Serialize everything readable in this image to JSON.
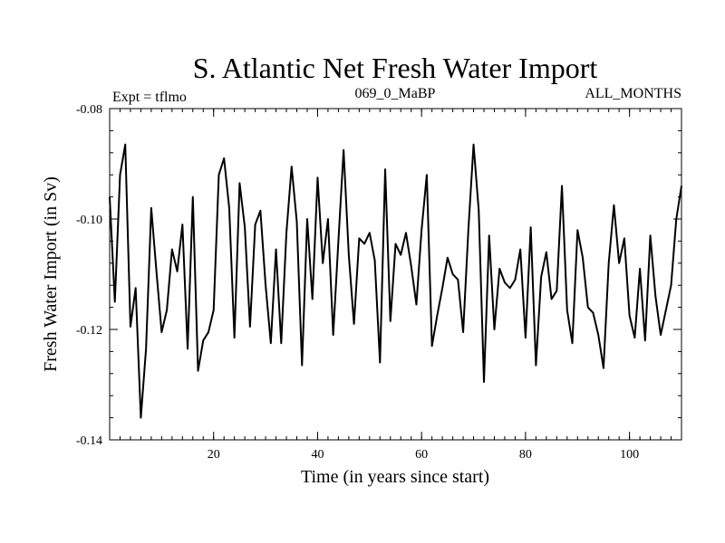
{
  "chart_data": {
    "type": "line",
    "title": "S. Atlantic Net Fresh Water Import",
    "subtitle_left": "Expt = tflmo",
    "subtitle_center": "069_0_MaBP",
    "subtitle_right": "ALL_MONTHS",
    "xlabel": "Time (in years since start)",
    "ylabel": "Fresh Water Import (in Sv)",
    "xlim": [
      0,
      110
    ],
    "ylim": [
      -0.14,
      -0.08
    ],
    "x_ticks": [
      20,
      40,
      60,
      80,
      100
    ],
    "x_tick_labels": [
      "20",
      "40",
      "60",
      "80",
      "100"
    ],
    "y_ticks": [
      -0.14,
      -0.12,
      -0.1,
      -0.08
    ],
    "y_tick_labels": [
      "-0.14",
      "-0.12",
      "-0.10",
      "-0.08"
    ],
    "line_color": "#000000",
    "series": [
      {
        "name": "fresh_water_import",
        "x": [
          0,
          1,
          2,
          3,
          4,
          5,
          6,
          7,
          8,
          9,
          10,
          11,
          12,
          13,
          14,
          15,
          16,
          17,
          18,
          19,
          20,
          21,
          22,
          23,
          24,
          25,
          26,
          27,
          28,
          29,
          30,
          31,
          32,
          33,
          34,
          35,
          36,
          37,
          38,
          39,
          40,
          41,
          42,
          43,
          44,
          45,
          46,
          47,
          48,
          49,
          50,
          51,
          52,
          53,
          54,
          55,
          56,
          57,
          58,
          59,
          60,
          61,
          62,
          63,
          64,
          65,
          66,
          67,
          68,
          69,
          70,
          71,
          72,
          73,
          74,
          75,
          76,
          77,
          78,
          79,
          80,
          81,
          82,
          83,
          84,
          85,
          86,
          87,
          88,
          89,
          90,
          91,
          92,
          93,
          94,
          95,
          96,
          97,
          98,
          99,
          100,
          101,
          102,
          103,
          104,
          105,
          106,
          107,
          108,
          109,
          110
        ],
        "values": [
          -0.096,
          -0.115,
          -0.092,
          -0.0865,
          -0.1195,
          -0.1125,
          -0.136,
          -0.1235,
          -0.098,
          -0.1095,
          -0.1205,
          -0.1165,
          -0.1055,
          -0.1095,
          -0.101,
          -0.1235,
          -0.096,
          -0.1275,
          -0.122,
          -0.1205,
          -0.1165,
          -0.092,
          -0.089,
          -0.098,
          -0.1215,
          -0.0935,
          -0.1015,
          -0.1195,
          -0.101,
          -0.0985,
          -0.112,
          -0.1225,
          -0.1055,
          -0.1225,
          -0.1025,
          -0.0905,
          -0.1005,
          -0.1265,
          -0.1,
          -0.1145,
          -0.0925,
          -0.108,
          -0.1,
          -0.121,
          -0.104,
          -0.0875,
          -0.1065,
          -0.119,
          -0.1035,
          -0.1045,
          -0.1025,
          -0.1075,
          -0.126,
          -0.091,
          -0.1185,
          -0.1045,
          -0.1065,
          -0.1025,
          -0.1085,
          -0.1155,
          -0.102,
          -0.092,
          -0.123,
          -0.1175,
          -0.1125,
          -0.107,
          -0.11,
          -0.111,
          -0.1205,
          -0.102,
          -0.0865,
          -0.0985,
          -0.1295,
          -0.103,
          -0.12,
          -0.109,
          -0.1115,
          -0.1125,
          -0.111,
          -0.1055,
          -0.1215,
          -0.1015,
          -0.1265,
          -0.1105,
          -0.106,
          -0.1145,
          -0.113,
          -0.094,
          -0.1165,
          -0.1225,
          -0.102,
          -0.107,
          -0.116,
          -0.117,
          -0.121,
          -0.127,
          -0.108,
          -0.0975,
          -0.108,
          -0.1035,
          -0.1175,
          -0.1215,
          -0.109,
          -0.122,
          -0.103,
          -0.114,
          -0.121,
          -0.1165,
          -0.112,
          -0.1,
          -0.094
        ]
      }
    ]
  }
}
